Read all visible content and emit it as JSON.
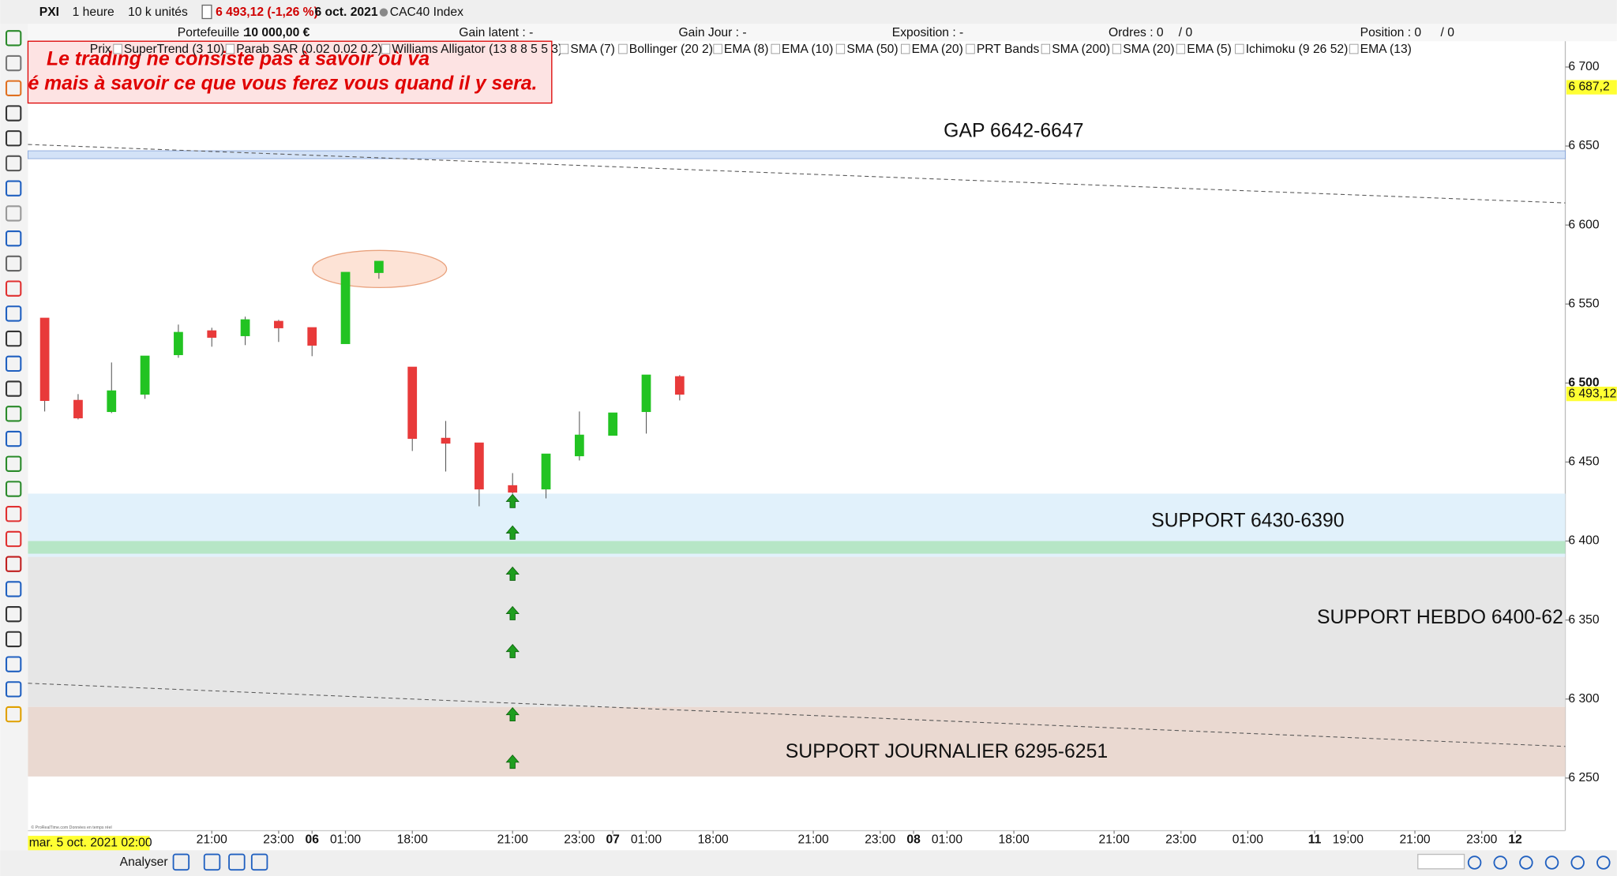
{
  "toolbar": {
    "symbol": "PXI",
    "timeframe": "1 heure",
    "units": "10 k unités",
    "last": "6 493,12 (-1,26 %)",
    "date": "6 oct. 2021",
    "instrument": "CAC40 Index"
  },
  "account": {
    "portfolio_label": "Portefeuille :",
    "portfolio": "10 000,00 €",
    "latent": "Gain latent : -",
    "day": "Gain Jour : -",
    "exposure": "Exposition : -",
    "orders": "Ordres : 0",
    "orders_total": "/ 0",
    "position": "Position : 0",
    "position_total": "/ 0"
  },
  "indicators": [
    "Prix",
    "SuperTrend (3 10)",
    "Parab SAR (0.02 0.02 0.2)",
    "Williams Alligator (13 8 8 5 5 3)",
    "SMA (7)",
    "Bollinger (20 2)",
    "EMA (8)",
    "EMA (10)",
    "SMA (50)",
    "EMA (20)",
    "PRT Bands",
    "SMA (200)",
    "SMA (20)",
    "EMA (5)",
    "Ichimoku (9 26 52)",
    "EMA (13)"
  ],
  "note": [
    "Le trading ne consiste pas à savoir où va",
    "é mais à savoir ce que vous ferez vous quand il y sera."
  ],
  "footer": {
    "cursor_date": "mar. 5 oct. 2021 02:00",
    "analyse": "Analyser",
    "copyright": "© ProRealTime.com Données en temps réel"
  },
  "chart_data": {
    "type": "candlestick",
    "x": [
      0,
      1,
      2,
      3,
      4,
      5,
      6,
      7,
      8,
      9,
      10,
      11,
      12,
      13,
      14,
      15,
      16,
      17,
      18,
      19
    ],
    "open": [
      6541,
      6489,
      6482,
      6493,
      6518,
      6533,
      6530,
      6539,
      6535,
      6525,
      6570,
      6510,
      6465,
      6462,
      6435,
      6433,
      6454,
      6467,
      6482,
      6504
    ],
    "high": [
      6541,
      6493,
      6513,
      6517,
      6537,
      6535,
      6542,
      6540,
      6535,
      6570,
      6577,
      6510,
      6476,
      6462,
      6443,
      6455,
      6482,
      6481,
      6505,
      6505
    ],
    "low": [
      6482,
      6477,
      6481,
      6490,
      6516,
      6523,
      6524,
      6526,
      6517,
      6525,
      6566,
      6457,
      6444,
      6422,
      6430,
      6427,
      6451,
      6467,
      6468,
      6489
    ],
    "close": [
      6489,
      6478,
      6495,
      6517,
      6532,
      6529,
      6540,
      6535,
      6524,
      6570,
      6577,
      6465,
      6462,
      6433,
      6431,
      6455,
      6467,
      6481,
      6505,
      6493
    ],
    "up_color": "#22c322",
    "down_color": "#e83a3a",
    "xlim": [
      -0.5,
      45.5
    ],
    "xticks": [
      {
        "value": 5,
        "label": "21:00"
      },
      {
        "value": 7,
        "label": "23:00"
      },
      {
        "value": 8,
        "label": "06"
      },
      {
        "value": 9,
        "label": "01:00"
      },
      {
        "value": 11,
        "label": "18:00"
      },
      {
        "value": 14,
        "label": "21:00"
      },
      {
        "value": 16,
        "label": "23:00"
      },
      {
        "value": 17,
        "label": "07"
      },
      {
        "value": 18,
        "label": "01:00"
      },
      {
        "value": 20,
        "label": "18:00"
      },
      {
        "value": 23,
        "label": "21:00"
      },
      {
        "value": 25,
        "label": "23:00"
      },
      {
        "value": 26,
        "label": "08"
      },
      {
        "value": 27,
        "label": "01:00"
      },
      {
        "value": 29,
        "label": "18:00"
      },
      {
        "value": 32,
        "label": "21:00"
      },
      {
        "value": 34,
        "label": "23:00"
      },
      {
        "value": 36,
        "label": "01:00"
      },
      {
        "value": 38,
        "label": "11"
      },
      {
        "value": 39,
        "label": "19:00"
      },
      {
        "value": 41,
        "label": "21:00"
      },
      {
        "value": 43,
        "label": "23:00"
      },
      {
        "value": 44,
        "label": "12"
      }
    ],
    "ylim": [
      6216.7,
      6705.9
    ],
    "yticks": [
      {
        "value": 6700,
        "label": "6 700"
      },
      {
        "value": 6650,
        "label": "6 650"
      },
      {
        "value": 6600,
        "label": "6 600"
      },
      {
        "value": 6550,
        "label": "6 550"
      },
      {
        "value": 6500,
        "label": "6 500"
      },
      {
        "value": 6450,
        "label": "6 450"
      },
      {
        "value": 6400,
        "label": "6 400"
      },
      {
        "value": 6350,
        "label": "6 350"
      },
      {
        "value": 6300,
        "label": "6 300"
      },
      {
        "value": 6250,
        "label": "6 250"
      }
    ],
    "zones": [
      {
        "from": 6295,
        "to": 6390,
        "color": "#e6e6e6",
        "label": "SUPPORT HEBDO 6400-62"
      },
      {
        "from": 6251,
        "to": 6295,
        "color": "#ead9d1",
        "label": "SUPPORT JOURNALIER 6295-6251"
      },
      {
        "from": 6390,
        "to": 6430,
        "color": "#e1f1fb",
        "label": "SUPPORT 6430-6390"
      },
      {
        "from": 6392,
        "to": 6400,
        "color": "#b6e6c6"
      },
      {
        "from": 6642,
        "to": 6647,
        "color": "#d3e2f7",
        "label": "GAP 6642-6647"
      }
    ],
    "trendlines": [
      {
        "x": [
          -0.5,
          45.5
        ],
        "y": [
          6651,
          6614
        ]
      },
      {
        "x": [
          -0.5,
          45.5
        ],
        "y": [
          6310,
          6270
        ]
      }
    ],
    "signals": {
      "x": 14,
      "values": [
        6425,
        6405,
        6379,
        6354,
        6330,
        6290,
        6260
      ],
      "color": "#1f9e1f"
    },
    "price_tags": [
      {
        "value": 6687.2,
        "label": "6 687,2"
      },
      {
        "value": 6493.12,
        "label": "6 493,12"
      }
    ]
  }
}
